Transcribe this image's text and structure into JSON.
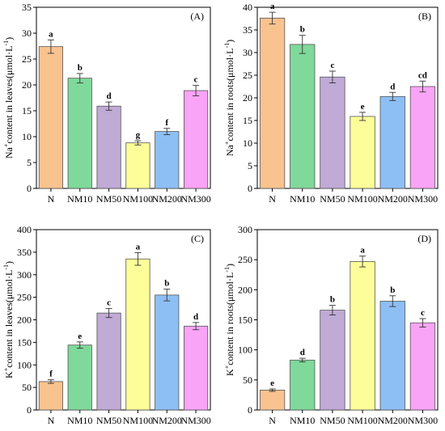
{
  "chart_data": [
    {
      "type": "bar",
      "panel": "(A)",
      "categories": [
        "N",
        "NM10",
        "NM50",
        "NM100",
        "NM200",
        "NM300"
      ],
      "values": [
        27.4,
        21.3,
        15.9,
        8.8,
        11.0,
        18.9
      ],
      "errors": [
        1.3,
        0.9,
        0.8,
        0.4,
        0.6,
        1.0
      ],
      "letters": [
        "a",
        "b",
        "d",
        "g",
        "f",
        "c"
      ],
      "colors": [
        "#f9c38f",
        "#7fd99a",
        "#c0aad6",
        "#fdfd99",
        "#8dbff5",
        "#f9a4f6"
      ],
      "ylabel": {
        "pre": "Na",
        "sup": "+",
        "mid": "content in leaves(μmol·L",
        "sup2": "-1",
        "post": ")"
      },
      "ylim": [
        0,
        35
      ],
      "yticks": [
        0,
        5,
        10,
        15,
        20,
        25,
        30,
        35
      ],
      "xlabel": "",
      "title": ""
    },
    {
      "type": "bar",
      "panel": "(B)",
      "categories": [
        "N",
        "NM10",
        "NM50",
        "NM100",
        "NM200",
        "NM300"
      ],
      "values": [
        37.6,
        31.8,
        24.6,
        15.9,
        20.3,
        22.5
      ],
      "errors": [
        1.3,
        2.0,
        1.3,
        0.9,
        0.9,
        1.2
      ],
      "letters": [
        "a",
        "b",
        "c",
        "e",
        "d",
        "cd"
      ],
      "colors": [
        "#f9c38f",
        "#7fd99a",
        "#c0aad6",
        "#fdfd99",
        "#8dbff5",
        "#f9a4f6"
      ],
      "ylabel": {
        "pre": "Na",
        "sup": "+",
        "mid": "content in roots(μmol·L",
        "sup2": "-1",
        "post": ")"
      },
      "ylim": [
        0,
        40
      ],
      "yticks": [
        0,
        5,
        10,
        15,
        20,
        25,
        30,
        35,
        40
      ],
      "xlabel": "",
      "title": ""
    },
    {
      "type": "bar",
      "panel": "(C)",
      "categories": [
        "N",
        "NM10",
        "NM50",
        "NM100",
        "NM200",
        "NM300"
      ],
      "values": [
        63,
        144,
        215,
        335,
        255,
        186
      ],
      "errors": [
        4,
        7,
        10,
        14,
        13,
        8
      ],
      "letters": [
        "f",
        "e",
        "c",
        "a",
        "b",
        "d"
      ],
      "colors": [
        "#f9c38f",
        "#7fd99a",
        "#c0aad6",
        "#fdfd99",
        "#8dbff5",
        "#f9a4f6"
      ],
      "ylabel": {
        "pre": "K",
        "sup": "+",
        "mid": "content in leaves(μmol·L",
        "sup2": "-1",
        "post": ")"
      },
      "ylim": [
        0,
        400
      ],
      "yticks": [
        0,
        50,
        100,
        150,
        200,
        250,
        300,
        350,
        400
      ],
      "xlabel": "",
      "title": ""
    },
    {
      "type": "bar",
      "panel": "(D)",
      "categories": [
        "N",
        "NM10",
        "NM50",
        "NM100",
        "NM200",
        "NM300"
      ],
      "values": [
        33,
        83,
        166,
        247,
        181,
        145
      ],
      "errors": [
        2,
        3,
        8,
        9,
        9,
        7
      ],
      "letters": [
        "e",
        "d",
        "b",
        "a",
        "b",
        "c"
      ],
      "colors": [
        "#f9c38f",
        "#7fd99a",
        "#c0aad6",
        "#fdfd99",
        "#8dbff5",
        "#f9a4f6"
      ],
      "ylabel": {
        "pre": "K",
        "sup": "+",
        "mid": "content in roots(μmol·L",
        "sup2": "-1",
        "post": ")"
      },
      "ylim": [
        0,
        300
      ],
      "yticks": [
        0,
        50,
        100,
        150,
        200,
        250,
        300
      ],
      "xlabel": "",
      "title": ""
    }
  ]
}
